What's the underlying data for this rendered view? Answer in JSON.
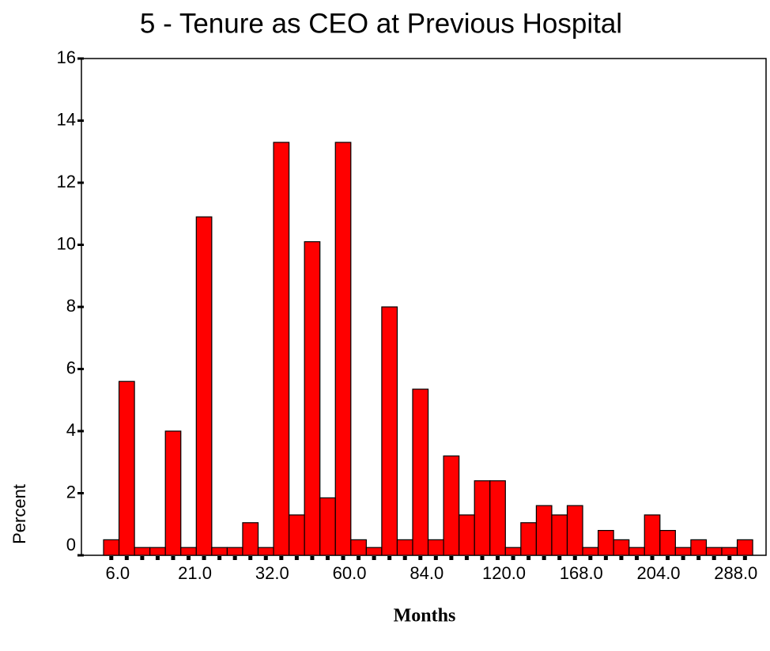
{
  "chart_data": {
    "type": "bar",
    "title": "5 - Tenure as CEO at Previous Hospital",
    "x_label": "Months",
    "y_label": "Percent",
    "categories": [
      "6.0",
      null,
      null,
      null,
      null,
      "21.0",
      null,
      null,
      null,
      null,
      "32.0",
      null,
      null,
      null,
      null,
      "60.0",
      null,
      null,
      null,
      null,
      "84.0",
      null,
      null,
      null,
      null,
      "120.0",
      null,
      null,
      null,
      null,
      "168.0",
      null,
      null,
      null,
      null,
      "204.0",
      null,
      null,
      null,
      null,
      "288.0",
      null
    ],
    "values": [
      0.5,
      5.6,
      0.25,
      0.25,
      4.0,
      0.25,
      10.9,
      0.25,
      0.25,
      1.05,
      0.25,
      13.3,
      1.3,
      10.1,
      1.85,
      13.3,
      0.5,
      0.25,
      8.0,
      0.5,
      5.35,
      0.5,
      3.2,
      1.3,
      2.4,
      2.4,
      0.25,
      1.05,
      1.6,
      1.3,
      1.6,
      0.25,
      0.8,
      0.5,
      0.25,
      1.3,
      0.8,
      0.25,
      0.5,
      0.25,
      0.25,
      0.5
    ],
    "color": "#ff0000",
    "ylim": [
      0,
      16
    ],
    "yticks": [
      0,
      2,
      4,
      6,
      8,
      10,
      12,
      14,
      16
    ]
  }
}
